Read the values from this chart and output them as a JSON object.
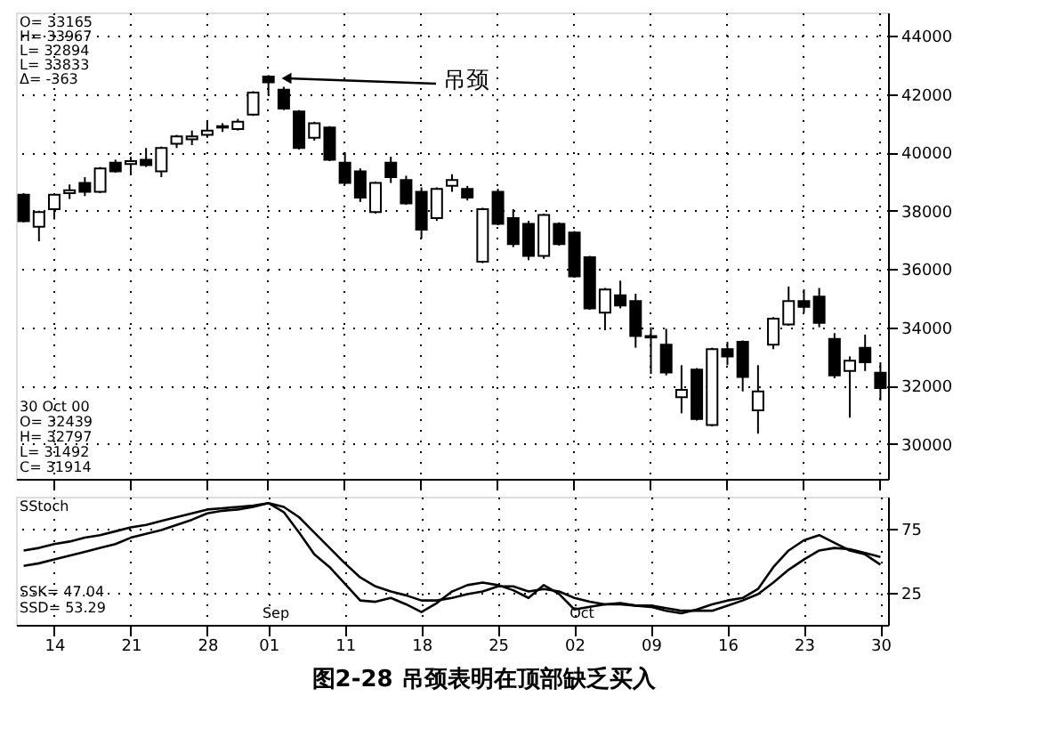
{
  "chart_data": [
    {
      "type": "candlestick",
      "title": "图2-28  吊颈表明在顶部缺乏买入",
      "categories": [
        null,
        null,
        "14",
        null,
        null,
        null,
        null,
        "21",
        null,
        null,
        null,
        null,
        "28",
        null,
        null,
        null,
        "01",
        null,
        null,
        null,
        null,
        "11",
        null,
        null,
        null,
        null,
        "18",
        null,
        null,
        null,
        null,
        "25",
        null,
        null,
        null,
        null,
        "02",
        null,
        null,
        null,
        null,
        "09",
        null,
        null,
        null,
        null,
        "16",
        null,
        null,
        null,
        null,
        "23",
        null,
        null,
        null,
        null,
        "30"
      ],
      "ohlc": [
        [
          38550,
          38600,
          37600,
          37640
        ],
        [
          37450,
          38000,
          36950,
          37950
        ],
        [
          38050,
          38600,
          37700,
          38550
        ],
        [
          38600,
          38900,
          38400,
          38700
        ],
        [
          38950,
          39150,
          38500,
          38650
        ],
        [
          38650,
          39500,
          38600,
          39450
        ],
        [
          39650,
          39750,
          39300,
          39350
        ],
        [
          39600,
          39850,
          39250,
          39700
        ],
        [
          39750,
          40150,
          39500,
          39560
        ],
        [
          39350,
          40200,
          39150,
          40150
        ],
        [
          40300,
          40600,
          40150,
          40550
        ],
        [
          40450,
          40750,
          40250,
          40550
        ],
        [
          40600,
          41050,
          40500,
          40750
        ],
        [
          40850,
          41000,
          40700,
          40900
        ],
        [
          40800,
          41150,
          40750,
          41050
        ],
        [
          41300,
          42100,
          41250,
          42050
        ],
        [
          42600,
          42650,
          41950,
          42400
        ],
        [
          42150,
          42250,
          41450,
          41500
        ],
        [
          41400,
          41450,
          40100,
          40150
        ],
        [
          40500,
          41050,
          40400,
          41000
        ],
        [
          40850,
          40900,
          39700,
          39750
        ],
        [
          39650,
          40000,
          38900,
          38950
        ],
        [
          39350,
          39450,
          38300,
          38450
        ],
        [
          37950,
          39000,
          37900,
          38950
        ],
        [
          39650,
          39850,
          38950,
          39150
        ],
        [
          39050,
          39200,
          38200,
          38250
        ],
        [
          38650,
          38800,
          37050,
          37350
        ],
        [
          37750,
          38800,
          37650,
          38750
        ],
        [
          38850,
          39250,
          38650,
          39050
        ],
        [
          38750,
          38850,
          38350,
          38450
        ],
        [
          36250,
          38100,
          36200,
          38050
        ],
        [
          38650,
          38750,
          37500,
          37550
        ],
        [
          37750,
          38050,
          36750,
          36850
        ],
        [
          37550,
          37650,
          36300,
          36450
        ],
        [
          36450,
          37900,
          36350,
          37850
        ],
        [
          37550,
          37600,
          36800,
          36850
        ],
        [
          37250,
          37300,
          35700,
          35750
        ],
        [
          36400,
          36450,
          34600,
          34650
        ],
        [
          34500,
          35350,
          33900,
          35300
        ],
        [
          35100,
          35600,
          34650,
          34750
        ],
        [
          34900,
          35150,
          33300,
          33700
        ],
        [
          33650,
          34000,
          32400,
          33700
        ],
        [
          33400,
          33950,
          32350,
          32450
        ],
        [
          31600,
          32700,
          31050,
          31850
        ],
        [
          32550,
          32600,
          30800,
          30850
        ],
        [
          30650,
          33300,
          30600,
          33250
        ],
        [
          33250,
          33500,
          32700,
          33000
        ],
        [
          33500,
          33550,
          31800,
          32300
        ],
        [
          31150,
          32700,
          30350,
          31800
        ],
        [
          33400,
          34350,
          33250,
          34300
        ],
        [
          34100,
          35400,
          34050,
          34900
        ],
        [
          34900,
          35300,
          34500,
          34700
        ],
        [
          35050,
          35350,
          34000,
          34150
        ],
        [
          33600,
          33800,
          32250,
          32350
        ],
        [
          32500,
          33000,
          30900,
          32850
        ],
        [
          33300,
          33750,
          32500,
          32800
        ],
        [
          32439,
          32797,
          31492,
          31914
        ]
      ],
      "ylim": [
        28800,
        44800
      ],
      "yticks": [
        30000,
        32000,
        34000,
        36000,
        38000,
        40000,
        42000,
        44000
      ],
      "grid": true,
      "tick_labels": "y",
      "annotations": [
        "吊颈",
        "O= 33165",
        "H= 33967",
        "L= 32894",
        "L= 33833",
        "Δ= -363",
        "30 Oct 00",
        "O= 32439",
        "H= 32797",
        "L= 31492",
        "C= 31914"
      ]
    },
    {
      "type": "line",
      "categories": [
        null,
        null,
        "14",
        null,
        null,
        null,
        null,
        "21",
        null,
        null,
        null,
        null,
        "28",
        null,
        null,
        null,
        "01",
        null,
        null,
        null,
        null,
        "11",
        null,
        null,
        null,
        null,
        "18",
        null,
        null,
        null,
        null,
        "25",
        null,
        null,
        null,
        null,
        "02",
        null,
        null,
        null,
        null,
        "09",
        null,
        null,
        null,
        null,
        "16",
        null,
        null,
        null,
        null,
        "23",
        null,
        null,
        null,
        null,
        "30"
      ],
      "series": [
        {
          "color": "#000000",
          "values": [
            58,
            60,
            63,
            65,
            68,
            70,
            73,
            76,
            78,
            81,
            84,
            87,
            90,
            91,
            92,
            93,
            95,
            88,
            72,
            55,
            45,
            32,
            19,
            18,
            21,
            16,
            10,
            17,
            26,
            31,
            33,
            31,
            27,
            21,
            31,
            24,
            12,
            14,
            16,
            17,
            15,
            14,
            11,
            9,
            12,
            16,
            19,
            21,
            28,
            45,
            58,
            66,
            70,
            64,
            58,
            55,
            47
          ]
        },
        {
          "color": "#000000",
          "values": [
            46,
            48,
            51,
            54,
            57,
            60,
            63,
            68,
            71,
            74,
            78,
            82,
            87,
            89,
            90,
            92,
            95,
            92,
            84,
            72,
            60,
            48,
            37,
            30,
            26,
            23,
            19,
            19,
            21,
            24,
            26,
            30,
            30,
            26,
            28,
            26,
            21,
            18,
            16,
            16,
            15,
            15,
            13,
            11,
            11,
            11,
            15,
            19,
            24,
            33,
            43,
            51,
            58,
            60,
            59,
            56,
            53
          ]
        }
      ],
      "ylim": [
        0,
        100
      ],
      "yticks": [
        25,
        75
      ],
      "grid": true,
      "marker": "none",
      "line_style": "solid",
      "annotations": [
        "SStoch",
        "SSK= 47.04",
        "SSD= 53.29",
        "Sep",
        "Oct"
      ]
    }
  ]
}
